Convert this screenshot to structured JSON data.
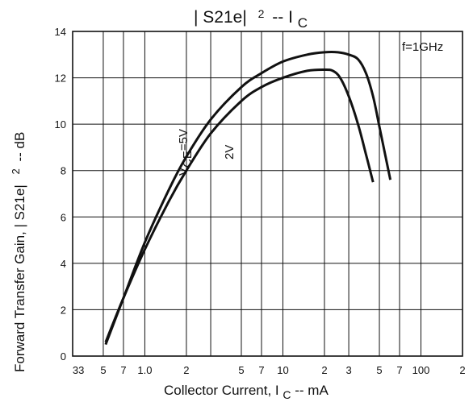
{
  "chart_data": {
    "type": "line",
    "title": {
      "prefix": "| S21e|",
      "sup": "2",
      "mid": " -- I",
      "sub": "C"
    },
    "xlabel": {
      "prefix": "Collector Current, I",
      "sub": "C",
      "suffix": " -- mA"
    },
    "ylabel": {
      "text": "Forward Transfer Gain, | S21e|",
      "sup": "2",
      "suffix": " -- dB"
    },
    "x_scale": "log",
    "xlim": [
      0.3,
      200
    ],
    "ylim": [
      0,
      14
    ],
    "y_ticks": [
      "0",
      "2",
      "4",
      "6",
      "8",
      "10",
      "12",
      "14"
    ],
    "x_tick_labels": [
      {
        "x": 0.33,
        "label": "33"
      },
      {
        "x": 0.5,
        "label": "5"
      },
      {
        "x": 0.7,
        "label": "7"
      },
      {
        "x": 1.0,
        "label": "1.0"
      },
      {
        "x": 2,
        "label": "2"
      },
      {
        "x": 5,
        "label": "5"
      },
      {
        "x": 7,
        "label": "7"
      },
      {
        "x": 10,
        "label": "10"
      },
      {
        "x": 20,
        "label": "2"
      },
      {
        "x": 30,
        "label": "3"
      },
      {
        "x": 50,
        "label": "5"
      },
      {
        "x": 70,
        "label": "7"
      },
      {
        "x": 100,
        "label": "100"
      },
      {
        "x": 200,
        "label": "2"
      }
    ],
    "grid_x": [
      0.5,
      0.7,
      1,
      2,
      3,
      5,
      7,
      10,
      20,
      30,
      50,
      70,
      100
    ],
    "grid_y": [
      2,
      4,
      6,
      8,
      10,
      12
    ],
    "grid": true,
    "condition": "f=1GHz",
    "series": [
      {
        "name": "VCE=5V",
        "label_parts": {
          "main": "V",
          "sub": "CE",
          "rest": "=5V"
        },
        "x": [
          0.52,
          0.7,
          1.0,
          1.5,
          2.0,
          3.0,
          5.0,
          7.0,
          10,
          15,
          20,
          25,
          30,
          35,
          40,
          45,
          50,
          55,
          60
        ],
        "y": [
          0.5,
          2.5,
          4.9,
          7.2,
          8.6,
          10.2,
          11.6,
          12.2,
          12.7,
          13.0,
          13.1,
          13.1,
          13.0,
          12.8,
          12.2,
          11.2,
          9.9,
          8.7,
          7.6
        ]
      },
      {
        "name": "2V",
        "label_parts": {
          "main": "2V",
          "sub": "",
          "rest": ""
        },
        "x": [
          0.52,
          0.7,
          1.0,
          1.5,
          2.0,
          3.0,
          5.0,
          7.0,
          10,
          15,
          20,
          23,
          26,
          30,
          35,
          40,
          45
        ],
        "y": [
          0.6,
          2.5,
          4.6,
          6.7,
          8.0,
          9.6,
          11.0,
          11.6,
          12.0,
          12.3,
          12.35,
          12.3,
          12.0,
          11.2,
          10.0,
          8.7,
          7.5
        ]
      }
    ]
  }
}
